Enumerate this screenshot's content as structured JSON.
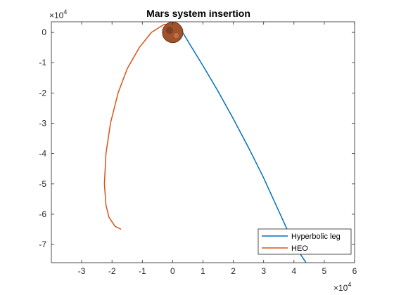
{
  "chart_data": {
    "type": "line",
    "title": "Mars system insertion",
    "xlabel": "",
    "ylabel": "",
    "x_multiplier_label": "×10",
    "x_multiplier_exponent": "4",
    "y_multiplier_label": "×10",
    "y_multiplier_exponent": "4",
    "xlim": [
      -4.0,
      6.0
    ],
    "ylim": [
      -7.6,
      0.35
    ],
    "x_ticks": [
      -3,
      -2,
      -1,
      0,
      1,
      2,
      3,
      4,
      5,
      6
    ],
    "x_tick_labels": [
      "-3",
      "-2",
      "-1",
      "0",
      "1",
      "2",
      "3",
      "4",
      "5",
      "6"
    ],
    "y_ticks": [
      0,
      -1,
      -2,
      -3,
      -4,
      -5,
      -6,
      -7
    ],
    "y_tick_labels": [
      "0",
      "-1",
      "-2",
      "-3",
      "-4",
      "-5",
      "-6",
      "-7"
    ],
    "grid": false,
    "legend_position": "bottom-right",
    "series": [
      {
        "name": "Hyperbolic leg",
        "color": "#0072bd",
        "x": [
          0.05,
          0.3,
          0.6,
          1.0,
          1.5,
          2.0,
          2.5,
          3.0,
          3.5,
          4.0,
          4.4
        ],
        "y": [
          0.3,
          0.05,
          -0.45,
          -1.1,
          -1.95,
          -2.85,
          -3.8,
          -4.8,
          -5.9,
          -7.0,
          -7.6
        ]
      },
      {
        "name": "HEO",
        "color": "#d95319",
        "x": [
          0.05,
          -0.3,
          -0.7,
          -1.1,
          -1.5,
          -1.8,
          -2.05,
          -2.2,
          -2.25,
          -2.2,
          -2.1,
          -1.9,
          -1.7
        ],
        "y": [
          0.3,
          0.25,
          0.0,
          -0.5,
          -1.2,
          -2.0,
          -3.0,
          -4.0,
          -5.0,
          -5.7,
          -6.1,
          -6.4,
          -6.5
        ]
      }
    ],
    "planet": {
      "label": "Mars",
      "x": 0.0,
      "y": 0.0,
      "radius": 0.34,
      "color": "#a0522d"
    }
  }
}
